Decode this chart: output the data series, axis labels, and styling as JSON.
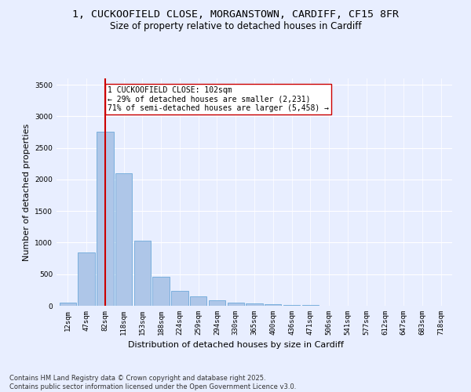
{
  "title_line1": "1, CUCKOOFIELD CLOSE, MORGANSTOWN, CARDIFF, CF15 8FR",
  "title_line2": "Size of property relative to detached houses in Cardiff",
  "xlabel": "Distribution of detached houses by size in Cardiff",
  "ylabel": "Number of detached properties",
  "categories": [
    "12sqm",
    "47sqm",
    "82sqm",
    "118sqm",
    "153sqm",
    "188sqm",
    "224sqm",
    "259sqm",
    "294sqm",
    "330sqm",
    "365sqm",
    "400sqm",
    "436sqm",
    "471sqm",
    "506sqm",
    "541sqm",
    "577sqm",
    "612sqm",
    "647sqm",
    "683sqm",
    "718sqm"
  ],
  "values": [
    55,
    840,
    2760,
    2100,
    1035,
    460,
    230,
    155,
    90,
    55,
    35,
    25,
    10,
    8,
    5,
    3,
    2,
    1,
    1,
    0,
    0
  ],
  "bar_color": "#aec6e8",
  "bar_edge_color": "#5a9fd4",
  "vline_x": 2,
  "vline_color": "#cc0000",
  "annotation_text": "1 CUCKOOFIELD CLOSE: 102sqm\n← 29% of detached houses are smaller (2,231)\n71% of semi-detached houses are larger (5,458) →",
  "annotation_box_edgecolor": "#cc0000",
  "annotation_box_facecolor": "#ffffff",
  "ylim": [
    0,
    3600
  ],
  "yticks": [
    0,
    500,
    1000,
    1500,
    2000,
    2500,
    3000,
    3500
  ],
  "footnote": "Contains HM Land Registry data © Crown copyright and database right 2025.\nContains public sector information licensed under the Open Government Licence v3.0.",
  "bg_color": "#e8eeff",
  "grid_color": "#ffffff",
  "title_fontsize": 9.5,
  "subtitle_fontsize": 8.5,
  "tick_fontsize": 6.5,
  "label_fontsize": 8,
  "footnote_fontsize": 6,
  "annotation_fontsize": 7
}
